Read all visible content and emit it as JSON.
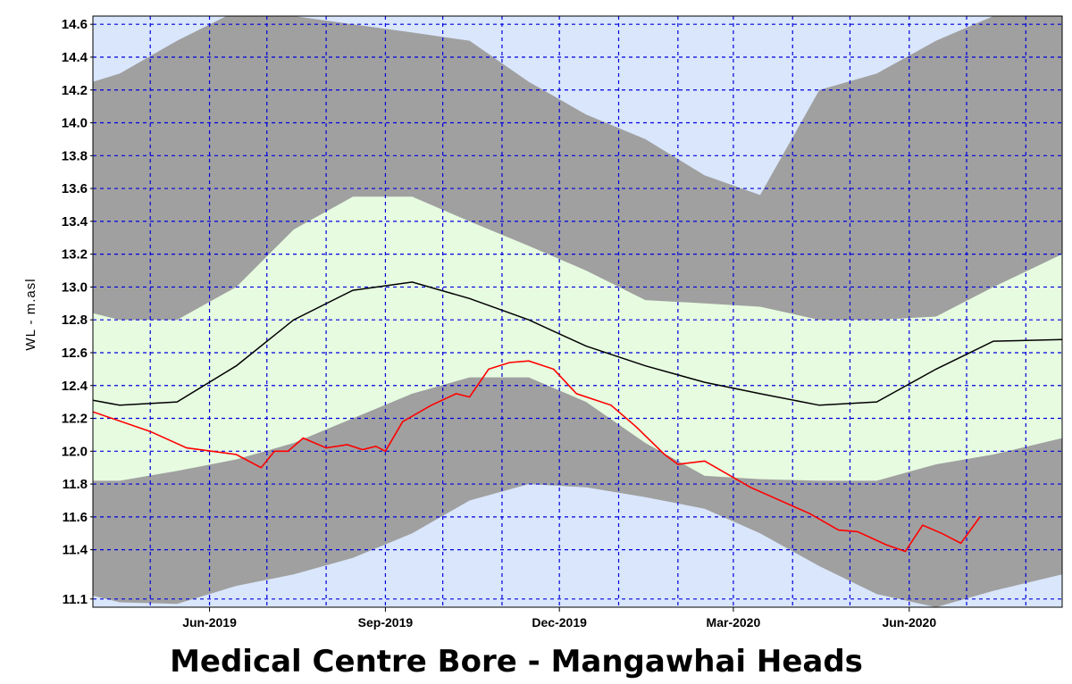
{
  "chart_data": {
    "type": "area",
    "title": "Medical Centre  Bore - Mangawhai Heads",
    "ylabel": "WL  -  m.asl",
    "xlabel": "",
    "x_start": "2019-04-01",
    "x_end": "2020-08-20",
    "ylim": [
      11.05,
      14.65
    ],
    "yticks": [
      11.1,
      11.4,
      11.6,
      11.8,
      12.0,
      12.2,
      12.4,
      12.6,
      12.8,
      13.0,
      13.2,
      13.4,
      13.6,
      13.8,
      14.0,
      14.2,
      14.4,
      14.6
    ],
    "xticks": [
      {
        "label": "Jun-2019",
        "date": "2019-06-01"
      },
      {
        "label": "Sep-2019",
        "date": "2019-09-01"
      },
      {
        "label": "Dec-2019",
        "date": "2019-12-01"
      },
      {
        "label": "Mar-2020",
        "date": "2020-03-01"
      },
      {
        "label": "Jun-2020",
        "date": "2020-06-01"
      }
    ],
    "grid": true,
    "colors": {
      "background": "#d9e6fb",
      "grid": "#0000dd",
      "outer_band": "#a0a0a0",
      "inner_band": "#e6fbe0",
      "median": "#000000",
      "observed": "#ff0000"
    },
    "x": [
      "2019-04-01",
      "2019-04-15",
      "2019-05-15",
      "2019-06-15",
      "2019-07-15",
      "2019-08-15",
      "2019-09-15",
      "2019-10-15",
      "2019-11-15",
      "2019-12-15",
      "2020-01-15",
      "2020-02-15",
      "2020-03-15",
      "2020-04-15",
      "2020-05-15",
      "2020-06-15",
      "2020-07-15",
      "2020-08-20"
    ],
    "bands": {
      "outer_upper": [
        14.25,
        14.3,
        14.5,
        14.68,
        14.65,
        14.6,
        14.55,
        14.5,
        14.25,
        14.05,
        13.9,
        13.68,
        13.56,
        14.2,
        14.3,
        14.5,
        14.65,
        14.7
      ],
      "inner_upper": [
        12.84,
        12.8,
        12.8,
        13.0,
        13.35,
        13.55,
        13.55,
        13.4,
        13.25,
        13.1,
        12.92,
        12.9,
        12.88,
        12.8,
        12.8,
        12.82,
        13.0,
        13.2
      ],
      "inner_lower": [
        11.82,
        11.82,
        11.88,
        11.95,
        12.05,
        12.2,
        12.35,
        12.45,
        12.45,
        12.3,
        12.05,
        11.85,
        11.83,
        11.82,
        11.82,
        11.92,
        11.98,
        12.08
      ],
      "outer_lower": [
        11.12,
        11.08,
        11.07,
        11.18,
        11.25,
        11.35,
        11.5,
        11.7,
        11.8,
        11.78,
        11.72,
        11.65,
        11.5,
        11.3,
        11.13,
        11.05,
        11.15,
        11.25
      ]
    },
    "series": [
      {
        "values": [
          12.31,
          12.28,
          12.3,
          12.52,
          12.8,
          12.98,
          13.03,
          12.93,
          12.8,
          12.64,
          12.52,
          12.42,
          12.35,
          12.28,
          12.3,
          12.5,
          12.67,
          12.68
        ]
      },
      {
        "x": [
          "2019-04-01",
          "2019-05-01",
          "2019-05-20",
          "2019-06-15",
          "2019-06-28",
          "2019-07-05",
          "2019-07-12",
          "2019-07-20",
          "2019-08-01",
          "2019-08-12",
          "2019-08-20",
          "2019-08-27",
          "2019-09-01",
          "2019-09-10",
          "2019-09-25",
          "2019-10-08",
          "2019-10-15",
          "2019-10-25",
          "2019-11-05",
          "2019-11-15",
          "2019-11-28",
          "2019-12-10",
          "2019-12-28",
          "2020-01-10",
          "2020-01-25",
          "2020-02-01",
          "2020-02-15",
          "2020-03-10",
          "2020-04-10",
          "2020-04-25",
          "2020-05-05",
          "2020-05-20",
          "2020-05-30",
          "2020-06-08",
          "2020-06-18",
          "2020-06-28",
          "2020-07-08"
        ],
        "values": [
          12.24,
          12.12,
          12.02,
          11.98,
          11.9,
          12.0,
          12.0,
          12.08,
          12.02,
          12.04,
          12.01,
          12.03,
          12.0,
          12.18,
          12.28,
          12.35,
          12.33,
          12.5,
          12.54,
          12.55,
          12.5,
          12.35,
          12.28,
          12.15,
          11.98,
          11.92,
          11.94,
          11.78,
          11.62,
          11.52,
          11.51,
          11.43,
          11.39,
          11.55,
          11.5,
          11.44,
          11.6
        ]
      }
    ]
  }
}
